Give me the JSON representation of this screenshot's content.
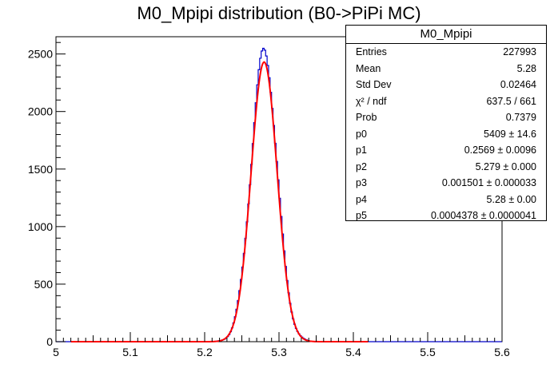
{
  "chart_data": {
    "type": "histogram",
    "title": "M0_Mpipi distribution (B0->PiPi MC)",
    "xlim": [
      5.0,
      5.6
    ],
    "ylim": [
      0,
      2650
    ],
    "x_ticks": [
      "5",
      "5.1",
      "5.2",
      "5.3",
      "5.4",
      "5.5",
      "5.6"
    ],
    "y_ticks": [
      "0",
      "500",
      "1000",
      "1500",
      "2000",
      "2500"
    ],
    "grid": false,
    "series": [
      {
        "style": "step",
        "color": "#0000cc",
        "x_range": [
          5.0,
          5.42
        ],
        "peak_x": 5.28,
        "peak_y": 2520,
        "sigma": 0.0175
      },
      {
        "style": "line",
        "color": "#ff0000",
        "fit": "gaussian",
        "x_range": [
          5.02,
          5.42
        ],
        "peak_x": 5.28,
        "peak_y": 2430,
        "sigma": 0.0175
      }
    ],
    "stats_box": {
      "title": "M0_Mpipi",
      "rows": [
        {
          "key": "Entries",
          "value": "227993"
        },
        {
          "key": "Mean",
          "value": "5.28"
        },
        {
          "key": "Std Dev",
          "value": "0.02464"
        },
        {
          "key": "χ² / ndf",
          "value": "637.5 / 661"
        },
        {
          "key": "Prob",
          "value": "0.7379"
        },
        {
          "key": "p0",
          "value": "5409 ± 14.6"
        },
        {
          "key": "p1",
          "value": "0.2569 ± 0.0096"
        },
        {
          "key": "p2",
          "value": "5.279 ± 0.000"
        },
        {
          "key": "p3",
          "value": "0.001501 ± 0.000033"
        },
        {
          "key": "p4",
          "value": "5.28 ± 0.00"
        },
        {
          "key": "p5",
          "value": "0.0004378 ± 0.0000041"
        }
      ]
    }
  }
}
